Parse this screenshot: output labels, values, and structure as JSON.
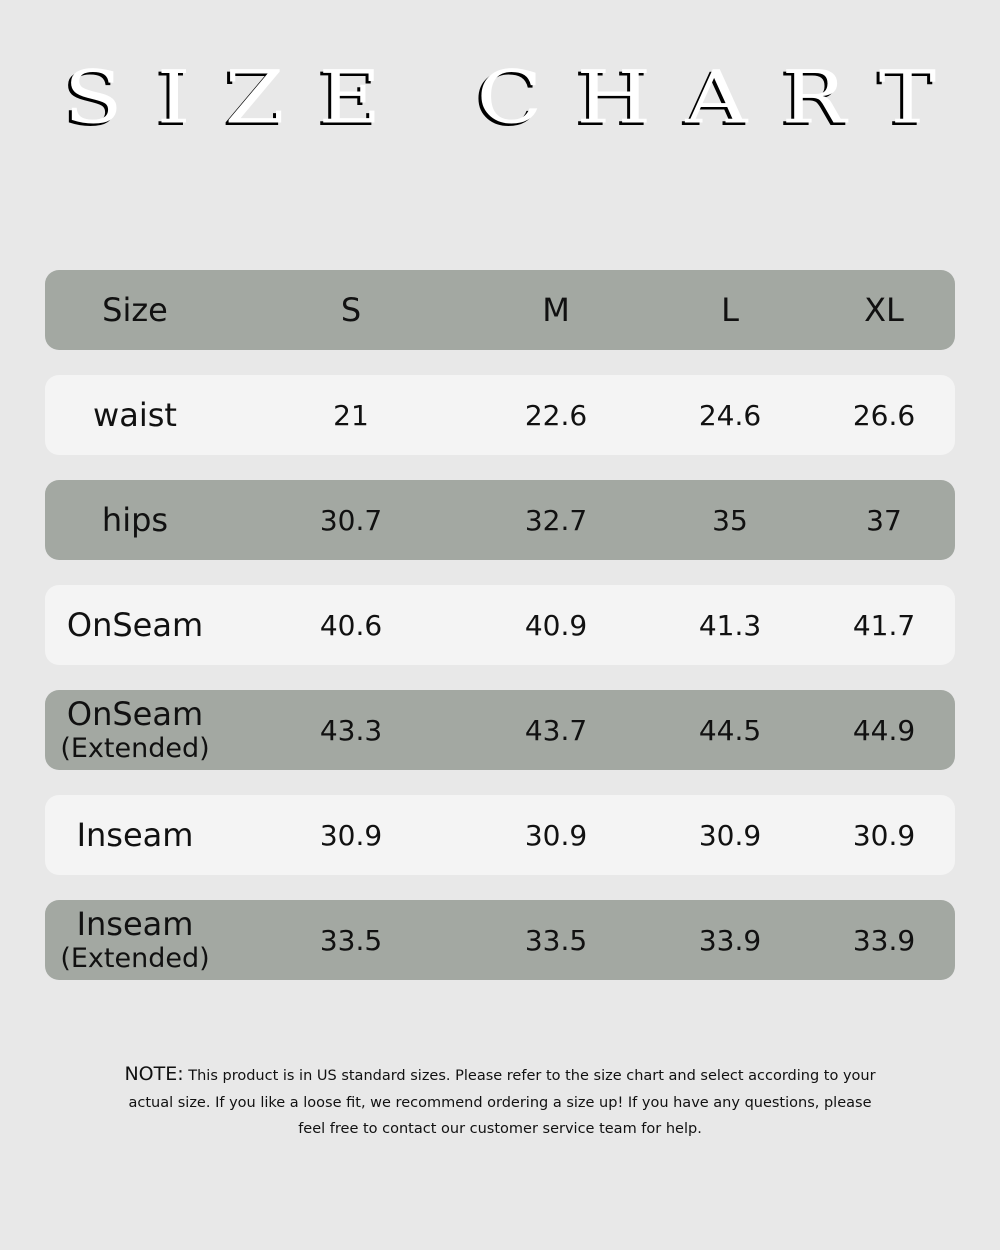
{
  "title": "SIZE CHART",
  "header": {
    "label": "Size",
    "sizes": [
      "S",
      "M",
      "L",
      "XL"
    ]
  },
  "rows": [
    {
      "label": "waist",
      "sub": "",
      "values": [
        "21",
        "22.6",
        "24.6",
        "26.6"
      ]
    },
    {
      "label": "hips",
      "sub": "",
      "values": [
        "30.7",
        "32.7",
        "35",
        "37"
      ]
    },
    {
      "label": "OnSeam",
      "sub": "",
      "values": [
        "40.6",
        "40.9",
        "41.3",
        "41.7"
      ]
    },
    {
      "label": "OnSeam",
      "sub": "(Extended)",
      "values": [
        "43.3",
        "43.7",
        "44.5",
        "44.9"
      ]
    },
    {
      "label": "Inseam",
      "sub": "",
      "values": [
        "30.9",
        "30.9",
        "30.9",
        "30.9"
      ]
    },
    {
      "label": "Inseam",
      "sub": "(Extended)",
      "values": [
        "33.5",
        "33.5",
        "33.9",
        "33.9"
      ]
    }
  ],
  "note": {
    "prefix": "NOTE:",
    "line1": "This product is in US standard sizes. Please refer to the size chart and select according to your",
    "line2": "actual size. If you like a loose fit, we  recommend ordering a size up! If you have any questions, please",
    "line3": "feel free to contact our customer service team for help."
  },
  "colors": {
    "background": "#e8e8e8",
    "dark_row": "#a3a8a2",
    "light_row": "#f4f4f4"
  }
}
